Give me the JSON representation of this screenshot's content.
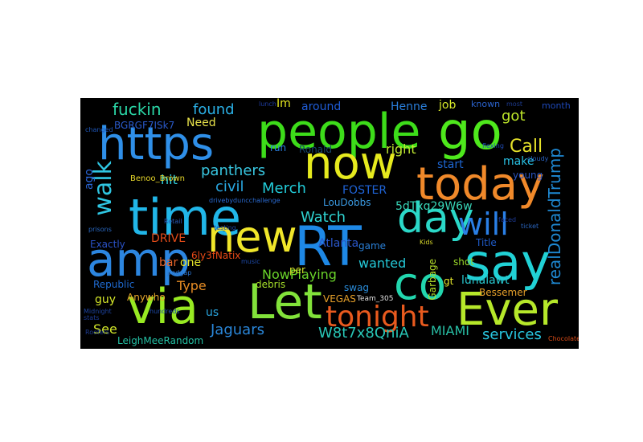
{
  "words": [
    {
      "text": "people",
      "color": "#3ddc1a"
    },
    {
      "text": "go",
      "color": "#4ee81c"
    },
    {
      "text": "https",
      "color": "#2f8fe8"
    },
    {
      "text": "now",
      "color": "#e6ea1e"
    },
    {
      "text": "today",
      "color": "#f0892a"
    },
    {
      "text": "time",
      "color": "#21b6e8"
    },
    {
      "text": "day",
      "color": "#2bd8c8"
    },
    {
      "text": "new",
      "color": "#f0e62a"
    },
    {
      "text": "RT",
      "color": "#1e88e5"
    },
    {
      "text": "will",
      "color": "#2a7fe6"
    },
    {
      "text": "amp",
      "color": "#2c86e0"
    },
    {
      "text": "say",
      "color": "#21d2d6"
    },
    {
      "text": "co",
      "color": "#22d6ae"
    },
    {
      "text": "via",
      "color": "#98ea22"
    },
    {
      "text": "Let",
      "color": "#82e23a"
    },
    {
      "text": "tonight",
      "color": "#e85a1e"
    },
    {
      "text": "Ever",
      "color": "#b6e82a"
    },
    {
      "text": "walk",
      "color": "#2fc6e2"
    },
    {
      "text": "fuckin",
      "color": "#2ad6a6"
    },
    {
      "text": "found",
      "color": "#2ab0e6"
    },
    {
      "text": "Im",
      "color": "#e6e820"
    },
    {
      "text": "around",
      "color": "#1f5cd6"
    },
    {
      "text": "Henne",
      "color": "#2a7fdc"
    },
    {
      "text": "job",
      "color": "#d6e82a"
    },
    {
      "text": "got",
      "color": "#bfe82a"
    },
    {
      "text": "Call",
      "color": "#e6e22a"
    },
    {
      "text": "Need",
      "color": "#e8e24a"
    },
    {
      "text": "panthers",
      "color": "#38c6e0"
    },
    {
      "text": "civil",
      "color": "#29a8e2"
    },
    {
      "text": "Merch",
      "color": "#22cbd8"
    },
    {
      "text": "hit",
      "color": "#2fd0e0"
    },
    {
      "text": "FOSTER",
      "color": "#1f64d8"
    },
    {
      "text": "realDonaldTrump",
      "color": "#1e88d2"
    },
    {
      "text": "make",
      "color": "#28c0e2"
    },
    {
      "text": "start",
      "color": "#1e66d2"
    },
    {
      "text": "right",
      "color": "#bfe830"
    },
    {
      "text": "run",
      "color": "#2a7fe0"
    },
    {
      "text": "Ronald",
      "color": "#16456a"
    },
    {
      "text": "Watch",
      "color": "#2fd4d2"
    },
    {
      "text": "LouDobbs",
      "color": "#3a9ae2"
    },
    {
      "text": "5dTxq29W6w",
      "color": "#38d6b8"
    },
    {
      "text": "DRIVE",
      "color": "#e24b18"
    },
    {
      "text": "Atlanta",
      "color": "#2a56c8"
    },
    {
      "text": "game",
      "color": "#2a80d8"
    },
    {
      "text": "Title",
      "color": "#1f5bc8"
    },
    {
      "text": "bar",
      "color": "#e6642a"
    },
    {
      "text": "one",
      "color": "#e6e62a"
    },
    {
      "text": "wanted",
      "color": "#24c9d8"
    },
    {
      "text": "Type",
      "color": "#e68c24"
    },
    {
      "text": "6ly3fNatix",
      "color": "#e84a16"
    },
    {
      "text": "NowPlaying",
      "color": "#6ad42a"
    },
    {
      "text": "Republic",
      "color": "#1f6ad0"
    },
    {
      "text": "guy",
      "color": "#d6e82a"
    },
    {
      "text": "Anywho",
      "color": "#e6a62a"
    },
    {
      "text": "debris",
      "color": "#a6e02a"
    },
    {
      "text": "swag",
      "color": "#2a8bd8"
    },
    {
      "text": "lunalawt",
      "color": "#28c8d0"
    },
    {
      "text": "gt",
      "color": "#e6e82a"
    },
    {
      "text": "Garbage",
      "color": "#b6e02a"
    },
    {
      "text": "Bessemer",
      "color": "#e6a02a"
    },
    {
      "text": "us",
      "color": "#2aa6e0"
    },
    {
      "text": "See",
      "color": "#d2e62a"
    },
    {
      "text": "Jaguars",
      "color": "#2a86d8"
    },
    {
      "text": "VEGAS",
      "color": "#e6a02a"
    },
    {
      "text": "W8t7x8QniA",
      "color": "#28c6b6"
    },
    {
      "text": "MIAMI",
      "color": "#28c0a6"
    },
    {
      "text": "services",
      "color": "#28c6e0"
    },
    {
      "text": "LeighMeeRandom",
      "color": "#24c0a4"
    },
    {
      "text": "ago",
      "color": "#2a66d8"
    },
    {
      "text": "Exactly",
      "color": "#2a52c8"
    },
    {
      "text": "BGRGF7ISk7",
      "color": "#2a5acb"
    },
    {
      "text": "Benoo_Brown",
      "color": "#e6d62a"
    },
    {
      "text": "Team_305",
      "color": "#e0e0e0"
    },
    {
      "text": "per",
      "color": "#d0e02a"
    },
    {
      "text": "shot",
      "color": "#9ad82a"
    },
    {
      "text": "known",
      "color": "#2a62cc"
    },
    {
      "text": "young",
      "color": "#2a54c0"
    },
    {
      "text": "month",
      "color": "#1e48b8"
    },
    {
      "text": "drivebyduncchallenge",
      "color": "#2a6ad0"
    },
    {
      "text": "jrodgap",
      "color": "#2a72cc"
    },
    {
      "text": "lunch",
      "color": "#1e3ca0"
    },
    {
      "text": "changed",
      "color": "#1e56b8"
    },
    {
      "text": "flexing",
      "color": "#1e4ab0"
    },
    {
      "text": "ticket",
      "color": "#2a66c0"
    },
    {
      "text": "hundreds",
      "color": "#1e4aa8"
    },
    {
      "text": "prisons",
      "color": "#2a6ac4"
    },
    {
      "text": "Midnight",
      "color": "#1e44a0"
    },
    {
      "text": "Retail",
      "color": "#2a5ab8"
    },
    {
      "text": "most",
      "color": "#1e3c90"
    },
    {
      "text": "cloudy",
      "color": "#2a62c0"
    },
    {
      "text": "Kids",
      "color": "#d6d62a"
    },
    {
      "text": "testing",
      "color": "#1e4aa8"
    },
    {
      "text": "faced",
      "color": "#1e3c98"
    },
    {
      "text": "Roofers",
      "color": "#1e3c90"
    },
    {
      "text": "Chocolate",
      "color": "#d64a16"
    },
    {
      "text": "music",
      "color": "#1e4aa8"
    },
    {
      "text": "stats",
      "color": "#1e3c98"
    }
  ]
}
